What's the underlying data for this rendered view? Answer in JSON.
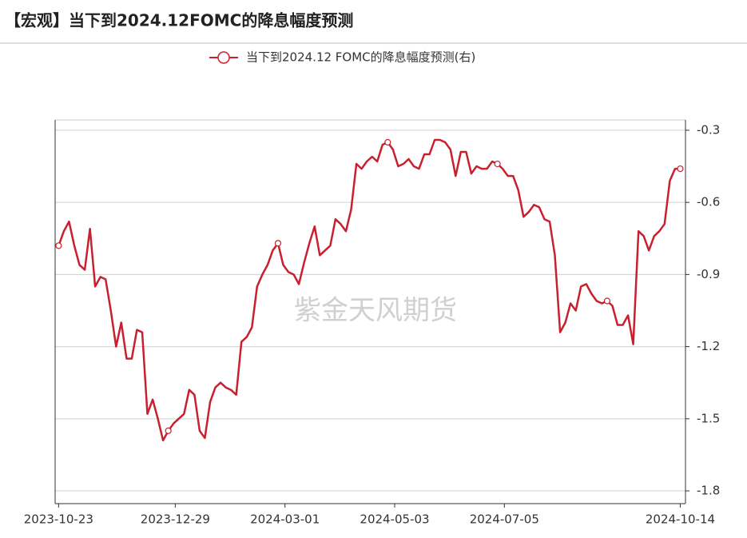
{
  "chart_data": {
    "type": "line",
    "title": "【宏观】当下到2024.12FOMC的降息幅度预测",
    "watermark": "紫金天风期货",
    "x": [
      "2023-10-23",
      "2023-10-26",
      "2023-10-29",
      "2023-11-01",
      "2023-11-04",
      "2023-11-07",
      "2023-11-10",
      "2023-11-13",
      "2023-11-16",
      "2023-11-19",
      "2023-11-22",
      "2023-11-25",
      "2023-11-28",
      "2023-12-01",
      "2023-12-04",
      "2023-12-07",
      "2023-12-10",
      "2023-12-13",
      "2023-12-16",
      "2023-12-19",
      "2023-12-22",
      "2023-12-25",
      "2023-12-28",
      "2023-12-31",
      "2024-01-03",
      "2024-01-06",
      "2024-01-09",
      "2024-01-12",
      "2024-01-15",
      "2024-01-18",
      "2024-01-21",
      "2024-01-24",
      "2024-01-27",
      "2024-01-30",
      "2024-02-02",
      "2024-02-05",
      "2024-02-08",
      "2024-02-11",
      "2024-02-14",
      "2024-02-17",
      "2024-02-20",
      "2024-02-23",
      "2024-02-26",
      "2024-02-29",
      "2024-03-03",
      "2024-03-06",
      "2024-03-09",
      "2024-03-12",
      "2024-03-15",
      "2024-03-18",
      "2024-03-21",
      "2024-03-24",
      "2024-03-27",
      "2024-03-30",
      "2024-04-02",
      "2024-04-05",
      "2024-04-08",
      "2024-04-11",
      "2024-04-14",
      "2024-04-17",
      "2024-04-20",
      "2024-04-23",
      "2024-04-26",
      "2024-04-29",
      "2024-05-02",
      "2024-05-05",
      "2024-05-08",
      "2024-05-11",
      "2024-05-14",
      "2024-05-17",
      "2024-05-20",
      "2024-05-23",
      "2024-05-26",
      "2024-05-29",
      "2024-06-01",
      "2024-06-04",
      "2024-06-07",
      "2024-06-10",
      "2024-06-13",
      "2024-06-16",
      "2024-06-19",
      "2024-06-22",
      "2024-06-25",
      "2024-06-28",
      "2024-07-01",
      "2024-07-04",
      "2024-07-07",
      "2024-07-10",
      "2024-07-13",
      "2024-07-16",
      "2024-07-19",
      "2024-07-22",
      "2024-07-25",
      "2024-07-28",
      "2024-07-31",
      "2024-08-03",
      "2024-08-06",
      "2024-08-09",
      "2024-08-12",
      "2024-08-15",
      "2024-08-18",
      "2024-08-21",
      "2024-08-24",
      "2024-08-27",
      "2024-08-30",
      "2024-09-02",
      "2024-09-05",
      "2024-09-08",
      "2024-09-11",
      "2024-09-14",
      "2024-09-17",
      "2024-09-20",
      "2024-09-23",
      "2024-09-26",
      "2024-09-29",
      "2024-10-02",
      "2024-10-05",
      "2024-10-08",
      "2024-10-11",
      "2024-10-14"
    ],
    "series": [
      {
        "name": "当下到2024.12 FOMC的降息幅度预测(右)",
        "color": "#c8202f",
        "axis": "y2",
        "values": [
          -0.78,
          -0.72,
          -0.68,
          -0.78,
          -0.86,
          -0.88,
          -0.71,
          -0.95,
          -0.91,
          -0.92,
          -1.05,
          -1.2,
          -1.1,
          -1.25,
          -1.25,
          -1.13,
          -1.14,
          -1.48,
          -1.42,
          -1.5,
          -1.59,
          -1.55,
          -1.52,
          -1.5,
          -1.48,
          -1.38,
          -1.4,
          -1.55,
          -1.58,
          -1.43,
          -1.37,
          -1.35,
          -1.37,
          -1.38,
          -1.4,
          -1.18,
          -1.16,
          -1.12,
          -0.95,
          -0.9,
          -0.86,
          -0.8,
          -0.77,
          -0.86,
          -0.89,
          -0.9,
          -0.94,
          -0.85,
          -0.77,
          -0.7,
          -0.82,
          -0.8,
          -0.78,
          -0.67,
          -0.69,
          -0.72,
          -0.63,
          -0.44,
          -0.46,
          -0.43,
          -0.41,
          -0.43,
          -0.36,
          -0.35,
          -0.38,
          -0.45,
          -0.44,
          -0.42,
          -0.45,
          -0.46,
          -0.4,
          -0.4,
          -0.34,
          -0.34,
          -0.35,
          -0.38,
          -0.49,
          -0.39,
          -0.39,
          -0.48,
          -0.45,
          -0.46,
          -0.46,
          -0.43,
          -0.44,
          -0.46,
          -0.49,
          -0.49,
          -0.55,
          -0.66,
          -0.64,
          -0.61,
          -0.62,
          -0.67,
          -0.68,
          -0.82,
          -1.14,
          -1.1,
          -1.02,
          -1.05,
          -0.95,
          -0.94,
          -0.98,
          -1.01,
          -1.02,
          -1.01,
          -1.03,
          -1.11,
          -1.11,
          -1.07,
          -1.19,
          -0.72,
          -0.74,
          -0.8,
          -0.74,
          -0.72,
          -0.69,
          -0.51,
          -0.46,
          -0.46
        ]
      }
    ],
    "xlim": [
      "2023-10-21",
      "2024-10-17"
    ],
    "xticks": [
      "2023-10-23",
      "2023-12-29",
      "2024-03-01",
      "2024-05-03",
      "2024-07-05",
      "2024-10-14"
    ],
    "y2lim": [
      -1.853,
      -0.257
    ],
    "y2ticks": [
      -0.3,
      -0.6,
      -0.9,
      -1.2,
      -1.5,
      -1.8
    ],
    "grid": true
  }
}
